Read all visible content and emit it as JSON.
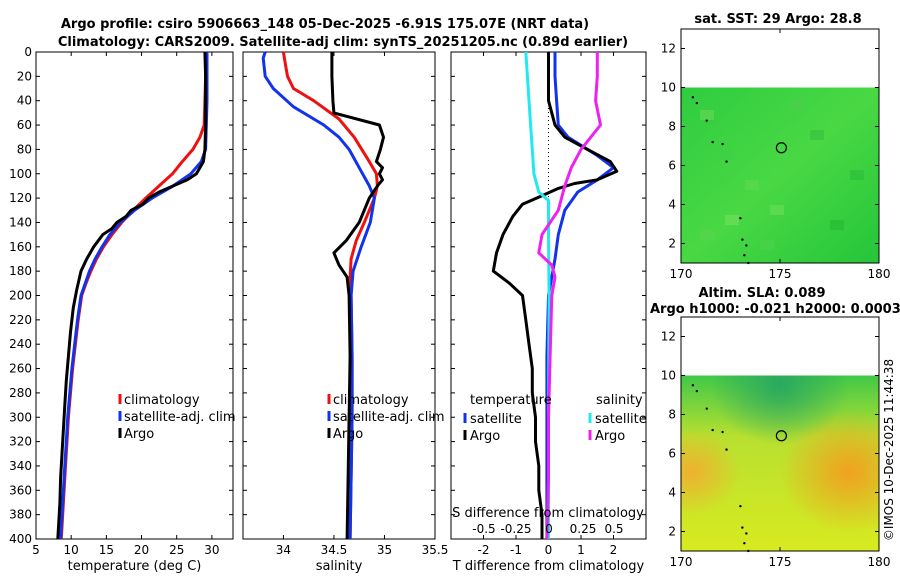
{
  "title_line1": "Argo profile: csiro 5906663_148 05-Dec-2025 -6.91S 175.07E (NRT data)",
  "title_line2": "Climatology: CARS2009. Satellite-adj clim: synTS_20251205.nc (0.89d earlier)",
  "timestamp": "©IMOS 10-Dec-2025 11:44:38",
  "colors": {
    "climatology": "#ee1111",
    "satellite": "#1133ee",
    "argo": "#000000",
    "sal_satellite": "#22e8f0",
    "sal_argo": "#ee22ee"
  },
  "depth_ticks": [
    "0",
    "20",
    "40",
    "60",
    "80",
    "100",
    "120",
    "140",
    "160",
    "180",
    "200",
    "220",
    "240",
    "260",
    "280",
    "300",
    "320",
    "340",
    "360",
    "380",
    "400"
  ],
  "chart_data": [
    {
      "type": "line",
      "name": "temperature",
      "xlabel": "temperature (deg C)",
      "ylabel": "depth",
      "xlim": [
        5,
        33
      ],
      "ylim": [
        400,
        0
      ],
      "xticks": [
        "5",
        "10",
        "15",
        "20",
        "25",
        "30"
      ],
      "legend": [
        "climatology",
        "satellite-adj. clim",
        "Argo"
      ],
      "series": [
        {
          "name": "climatology",
          "color": "#ee1111",
          "points": [
            [
              29.1,
              0
            ],
            [
              29.1,
              20
            ],
            [
              29.0,
              40
            ],
            [
              28.9,
              60
            ],
            [
              28.3,
              70
            ],
            [
              27.3,
              80
            ],
            [
              25.8,
              90
            ],
            [
              24.4,
              100
            ],
            [
              22.5,
              110
            ],
            [
              20.6,
              120
            ],
            [
              18.8,
              130
            ],
            [
              17.2,
              140
            ],
            [
              15.8,
              150
            ],
            [
              14.6,
              160
            ],
            [
              13.6,
              170
            ],
            [
              12.8,
              180
            ],
            [
              12.1,
              190
            ],
            [
              11.5,
              200
            ],
            [
              11.0,
              220
            ],
            [
              10.6,
              240
            ],
            [
              10.2,
              260
            ],
            [
              9.9,
              280
            ],
            [
              9.6,
              300
            ],
            [
              9.4,
              320
            ],
            [
              9.2,
              340
            ],
            [
              9.0,
              360
            ],
            [
              8.8,
              380
            ],
            [
              8.6,
              400
            ]
          ]
        },
        {
          "name": "satellite-adj. clim",
          "color": "#1133ee",
          "points": [
            [
              29.3,
              0
            ],
            [
              29.3,
              20
            ],
            [
              29.3,
              40
            ],
            [
              29.2,
              60
            ],
            [
              29.1,
              80
            ],
            [
              28.5,
              90
            ],
            [
              27.0,
              100
            ],
            [
              24.5,
              110
            ],
            [
              21.5,
              120
            ],
            [
              19.0,
              130
            ],
            [
              17.0,
              140
            ],
            [
              15.5,
              150
            ],
            [
              14.4,
              160
            ],
            [
              13.4,
              170
            ],
            [
              12.6,
              180
            ],
            [
              12.0,
              190
            ],
            [
              11.4,
              200
            ],
            [
              10.9,
              220
            ],
            [
              10.5,
              240
            ],
            [
              10.1,
              260
            ],
            [
              9.8,
              280
            ],
            [
              9.5,
              300
            ],
            [
              9.3,
              320
            ],
            [
              9.1,
              340
            ],
            [
              8.9,
              360
            ],
            [
              8.7,
              380
            ],
            [
              8.5,
              400
            ]
          ]
        },
        {
          "name": "Argo",
          "color": "#000000",
          "points": [
            [
              29.0,
              0
            ],
            [
              29.1,
              20
            ],
            [
              29.1,
              40
            ],
            [
              29.1,
              60
            ],
            [
              29.0,
              80
            ],
            [
              28.8,
              90
            ],
            [
              27.8,
              100
            ],
            [
              26.5,
              105
            ],
            [
              24.5,
              110
            ],
            [
              22.5,
              115
            ],
            [
              21.0,
              120
            ],
            [
              20.2,
              125
            ],
            [
              18.5,
              130
            ],
            [
              17.8,
              135
            ],
            [
              16.5,
              140
            ],
            [
              15.8,
              145
            ],
            [
              14.5,
              150
            ],
            [
              13.2,
              160
            ],
            [
              12.2,
              170
            ],
            [
              11.4,
              180
            ],
            [
              10.8,
              195
            ],
            [
              10.3,
              210
            ],
            [
              9.9,
              230
            ],
            [
              9.6,
              250
            ],
            [
              9.3,
              270
            ],
            [
              9.1,
              290
            ],
            [
              8.9,
              310
            ],
            [
              8.7,
              330
            ],
            [
              8.5,
              350
            ],
            [
              8.4,
              370
            ],
            [
              8.2,
              390
            ],
            [
              8.1,
              400
            ]
          ]
        }
      ]
    },
    {
      "type": "line",
      "name": "salinity",
      "xlabel": "salinity",
      "ylabel": "depth",
      "xlim": [
        33.6,
        35.5
      ],
      "ylim": [
        400,
        0
      ],
      "xticks": [
        "34",
        "34.5",
        "35",
        "35.5"
      ],
      "legend": [
        "climatology",
        "satellite-adj. clim",
        "Argo"
      ],
      "series": [
        {
          "name": "climatology",
          "color": "#ee1111",
          "points": [
            [
              34.0,
              0
            ],
            [
              34.02,
              10
            ],
            [
              34.04,
              20
            ],
            [
              34.1,
              30
            ],
            [
              34.3,
              40
            ],
            [
              34.55,
              55
            ],
            [
              34.7,
              70
            ],
            [
              34.85,
              90
            ],
            [
              34.92,
              100
            ],
            [
              34.93,
              110
            ],
            [
              34.9,
              120
            ],
            [
              34.8,
              140
            ],
            [
              34.72,
              155
            ],
            [
              34.67,
              170
            ],
            [
              34.66,
              185
            ],
            [
              34.67,
              200
            ],
            [
              34.68,
              250
            ],
            [
              34.68,
              300
            ],
            [
              34.67,
              350
            ],
            [
              34.66,
              400
            ]
          ]
        },
        {
          "name": "satellite-adj. clim",
          "color": "#1133ee",
          "points": [
            [
              33.82,
              0
            ],
            [
              33.8,
              5
            ],
            [
              33.82,
              20
            ],
            [
              33.9,
              30
            ],
            [
              34.1,
              45
            ],
            [
              34.4,
              60
            ],
            [
              34.55,
              70
            ],
            [
              34.65,
              80
            ],
            [
              34.75,
              95
            ],
            [
              34.85,
              110
            ],
            [
              34.9,
              120
            ],
            [
              34.86,
              140
            ],
            [
              34.77,
              160
            ],
            [
              34.69,
              180
            ],
            [
              34.67,
              200
            ],
            [
              34.68,
              250
            ],
            [
              34.68,
              300
            ],
            [
              34.67,
              350
            ],
            [
              34.66,
              400
            ]
          ]
        },
        {
          "name": "Argo",
          "color": "#000000",
          "points": [
            [
              34.48,
              0
            ],
            [
              34.48,
              20
            ],
            [
              34.49,
              40
            ],
            [
              34.5,
              50
            ],
            [
              34.95,
              60
            ],
            [
              34.99,
              70
            ],
            [
              34.96,
              80
            ],
            [
              34.92,
              90
            ],
            [
              34.98,
              95
            ],
            [
              34.95,
              100
            ],
            [
              34.98,
              105
            ],
            [
              34.93,
              110
            ],
            [
              34.85,
              120
            ],
            [
              34.75,
              140
            ],
            [
              34.62,
              155
            ],
            [
              34.5,
              165
            ],
            [
              34.55,
              175
            ],
            [
              34.63,
              185
            ],
            [
              34.65,
              200
            ],
            [
              34.66,
              250
            ],
            [
              34.65,
              300
            ],
            [
              34.64,
              350
            ],
            [
              34.63,
              400
            ]
          ]
        }
      ]
    },
    {
      "type": "line",
      "name": "difference",
      "xlabel": "T difference from climatology",
      "xlabel_top": "S difference from climatology",
      "ylabel": "depth",
      "xlim": [
        -3,
        3
      ],
      "ylim": [
        400,
        0
      ],
      "xticks": [
        "-2",
        "-1",
        "0",
        "1",
        "2"
      ],
      "sticks": [
        "-0.5",
        "-0.25",
        "0",
        "0.25",
        "0.5"
      ],
      "legend_temperature": [
        "temperature",
        "satellite",
        "Argo"
      ],
      "legend_salinity": [
        "salinity",
        "satellite",
        "Argo"
      ],
      "series": [
        {
          "name": "temperature satellite",
          "color": "#1133ee",
          "points": [
            [
              0.2,
              0
            ],
            [
              0.2,
              20
            ],
            [
              0.25,
              40
            ],
            [
              0.3,
              60
            ],
            [
              0.6,
              70
            ],
            [
              1.5,
              85
            ],
            [
              2.0,
              95
            ],
            [
              1.5,
              105
            ],
            [
              0.9,
              115
            ],
            [
              0.5,
              130
            ],
            [
              0.3,
              150
            ],
            [
              0.2,
              170
            ],
            [
              0.0,
              200
            ],
            [
              -0.05,
              250
            ],
            [
              -0.05,
              300
            ],
            [
              -0.05,
              350
            ],
            [
              -0.05,
              400
            ]
          ]
        },
        {
          "name": "temperature Argo",
          "color": "#000000",
          "points": [
            [
              0.0,
              0
            ],
            [
              0.0,
              40
            ],
            [
              0.2,
              60
            ],
            [
              0.5,
              70
            ],
            [
              1.2,
              80
            ],
            [
              1.9,
              90
            ],
            [
              2.1,
              98
            ],
            [
              1.5,
              105
            ],
            [
              0.8,
              108
            ],
            [
              0.3,
              112
            ],
            [
              -0.2,
              118
            ],
            [
              -0.8,
              125
            ],
            [
              -1.1,
              135
            ],
            [
              -1.4,
              150
            ],
            [
              -1.6,
              165
            ],
            [
              -1.7,
              180
            ],
            [
              -1.2,
              190
            ],
            [
              -0.8,
              200
            ],
            [
              -0.7,
              220
            ],
            [
              -0.6,
              240
            ],
            [
              -0.5,
              260
            ],
            [
              -0.5,
              280
            ],
            [
              -0.4,
              300
            ],
            [
              -0.4,
              320
            ],
            [
              -0.3,
              340
            ],
            [
              -0.3,
              360
            ],
            [
              -0.2,
              380
            ],
            [
              -0.2,
              400
            ]
          ]
        },
        {
          "name": "salinity satellite",
          "color": "#22e8f0",
          "points": [
            [
              -0.7,
              0
            ],
            [
              -0.65,
              20
            ],
            [
              -0.6,
              40
            ],
            [
              -0.55,
              60
            ],
            [
              -0.5,
              80
            ],
            [
              -0.45,
              100
            ],
            [
              -0.3,
              115
            ],
            [
              0.0,
              122
            ],
            [
              0.0,
              150
            ],
            [
              0.02,
              200
            ],
            [
              0.01,
              250
            ],
            [
              0.0,
              300
            ],
            [
              0.0,
              350
            ],
            [
              0.0,
              400
            ]
          ]
        },
        {
          "name": "salinity Argo",
          "color": "#ee22ee",
          "points": [
            [
              1.5,
              0
            ],
            [
              1.5,
              20
            ],
            [
              1.45,
              40
            ],
            [
              1.6,
              60
            ],
            [
              1.3,
              70
            ],
            [
              1.0,
              80
            ],
            [
              0.7,
              95
            ],
            [
              0.5,
              110
            ],
            [
              0.3,
              130
            ],
            [
              -0.2,
              150
            ],
            [
              -0.3,
              165
            ],
            [
              0.1,
              175
            ],
            [
              0.2,
              185
            ],
            [
              0.1,
              200
            ],
            [
              0.05,
              250
            ],
            [
              0.0,
              300
            ],
            [
              0.0,
              350
            ],
            [
              -0.05,
              400
            ]
          ]
        }
      ]
    },
    {
      "type": "heatmap",
      "name": "sst-map",
      "title": "sat. SST: 29 Argo: 28.8",
      "xlim": [
        170,
        180
      ],
      "ylim": [
        1,
        13
      ],
      "xticks": [
        "170",
        "175",
        "180"
      ],
      "yticks": [
        "2",
        "4",
        "6",
        "8",
        "10",
        "12"
      ],
      "argo_position": [
        175.07,
        6.91
      ]
    },
    {
      "type": "heatmap",
      "name": "sla-map",
      "title": "Altim. SLA: 0.089",
      "subtitle": "Argo h1000: -0.021 h2000: 0.0003",
      "xlim": [
        170,
        180
      ],
      "ylim": [
        1,
        13
      ],
      "xticks": [
        "170",
        "175",
        "180"
      ],
      "yticks": [
        "2",
        "4",
        "6",
        "8",
        "10",
        "12"
      ],
      "argo_position": [
        175.07,
        6.91
      ]
    }
  ]
}
